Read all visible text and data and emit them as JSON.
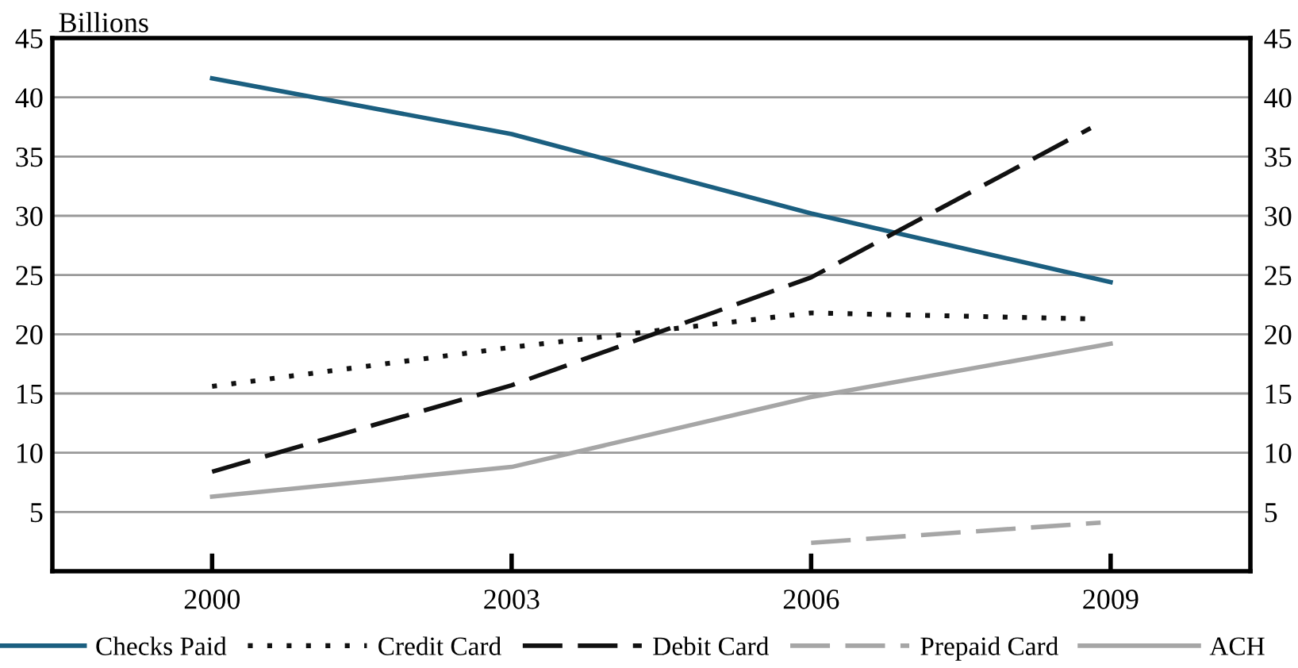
{
  "chart_data": {
    "type": "line",
    "ylabel": "Billions",
    "x": [
      2000,
      2003,
      2006,
      2009
    ],
    "series": [
      {
        "name": "Checks Paid",
        "color": "#1b5f80",
        "line_style": "solid",
        "values": [
          41.6,
          36.9,
          30.2,
          24.4
        ]
      },
      {
        "name": "Credit Card",
        "color": "#111111",
        "line_style": "dotted",
        "x": [
          2000,
          2003,
          2006,
          2008.8
        ],
        "values": [
          15.6,
          18.9,
          21.8,
          21.3
        ]
      },
      {
        "name": "Debit Card",
        "color": "#111111",
        "line_style": "dashed",
        "x": [
          2000,
          2003,
          2006,
          2008.8
        ],
        "values": [
          8.4,
          15.7,
          24.8,
          37.4
        ]
      },
      {
        "name": "Prepaid Card",
        "color": "#a6a6a6",
        "line_style": "dashed",
        "x": [
          2006,
          2008.9
        ],
        "values": [
          2.4,
          4.1
        ]
      },
      {
        "name": "ACH",
        "color": "#a6a6a6",
        "line_style": "solid",
        "values": [
          6.3,
          8.8,
          14.7,
          19.2
        ]
      }
    ],
    "xlim": [
      1998.4,
      2010.4
    ],
    "xticks": [
      2000,
      2003,
      2006,
      2009
    ],
    "ylim": [
      0,
      45
    ],
    "yticks": [
      5,
      10,
      15,
      20,
      25,
      30,
      35,
      40,
      45
    ],
    "y2lim": [
      0,
      45
    ],
    "y2ticks": [
      5,
      10,
      15,
      20,
      25,
      30,
      35,
      40,
      45
    ],
    "grid": "y",
    "legend": "bottom",
    "marker": "none"
  }
}
